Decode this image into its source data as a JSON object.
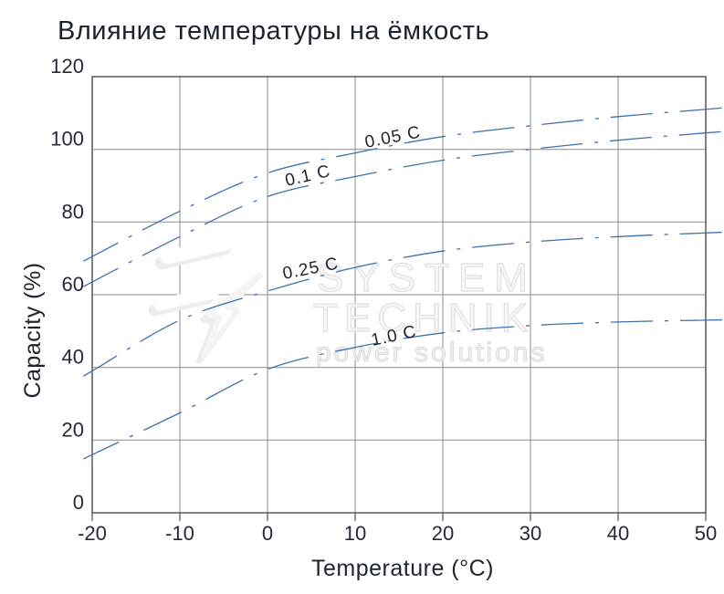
{
  "title": "Влияние температуры на ёмкость",
  "watermark": {
    "logo": "system-technik-bolt-logo",
    "line1": "SYSTEM",
    "line2": "TECHNIK",
    "line3": "power solutions"
  },
  "chart_data": {
    "type": "line",
    "title": "Влияние температуры на ёмкость",
    "xlabel": "Temperature (°C)",
    "ylabel": "Capacity (%)",
    "xlim": [
      -20,
      50
    ],
    "ylim": [
      0,
      120
    ],
    "x": [
      -20,
      -10,
      0,
      10,
      20,
      30,
      40,
      50
    ],
    "x_tick_labels": [
      "-20",
      "-10",
      "0",
      "10",
      "20",
      "30",
      "40",
      "50"
    ],
    "y_ticks": [
      0,
      20,
      40,
      60,
      80,
      100,
      120
    ],
    "y_tick_labels": [
      "0",
      "20",
      "40",
      "60",
      "80",
      "100",
      "120"
    ],
    "grid": true,
    "legend_position": "inline-labels-on-curves",
    "line_style": "dash-dot",
    "line_color": "#3f70ae",
    "grid_color": "#8c8c8c",
    "border_color": "#4d4d4d",
    "text_color": "#1e2530",
    "series": [
      {
        "name": "0.05 C",
        "values": [
          70.5,
          83,
          93.5,
          99,
          103.5,
          106.5,
          109,
          111
        ]
      },
      {
        "name": "0.1 C",
        "values": [
          63.5,
          76,
          87,
          92.5,
          97,
          100,
          102.5,
          104.5
        ]
      },
      {
        "name": "0.25 C",
        "values": [
          39,
          53,
          61,
          67.5,
          72,
          74.5,
          76,
          77
        ]
      },
      {
        "name": "1.0 C",
        "values": [
          16,
          27.5,
          39.5,
          45.5,
          49.5,
          51.5,
          52.5,
          53
        ]
      }
    ]
  }
}
